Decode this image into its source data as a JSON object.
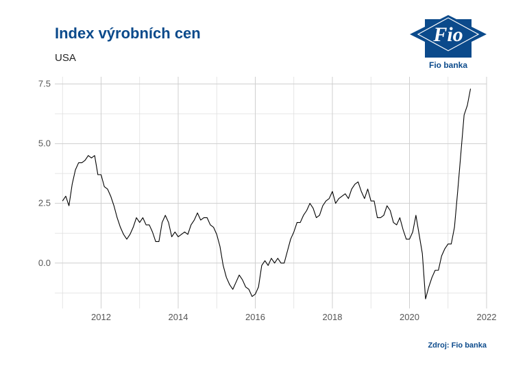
{
  "header": {
    "title": "Index výrobních cen",
    "subtitle": "USA"
  },
  "logo": {
    "mark_text": "Fio",
    "caption": "Fio banka",
    "color": "#0b4a8b"
  },
  "footer": {
    "source": "Zdroj: Fio banka"
  },
  "chart_data": {
    "type": "line",
    "title": "Index výrobních cen",
    "subtitle": "USA",
    "xlabel": "",
    "ylabel": "",
    "xlim": [
      2010.8,
      2022.0
    ],
    "ylim": [
      -1.9,
      7.8
    ],
    "x_ticks": [
      2012,
      2014,
      2016,
      2018,
      2020,
      2022
    ],
    "y_ticks": [
      0.0,
      2.5,
      5.0,
      7.5
    ],
    "y_tick_labels": [
      "0.0",
      "2.5",
      "5.0",
      "7.5"
    ],
    "grid": true,
    "line_color": "#000000",
    "series": [
      {
        "values_start": "2011-01",
        "frequency": "monthly",
        "values": [
          2.6,
          2.8,
          2.4,
          3.3,
          3.9,
          4.2,
          4.2,
          4.3,
          4.5,
          4.4,
          4.5,
          3.7,
          3.7,
          3.2,
          3.1,
          2.8,
          2.4,
          1.9,
          1.5,
          1.2,
          1.0,
          1.2,
          1.5,
          1.9,
          1.7,
          1.9,
          1.6,
          1.6,
          1.3,
          0.9,
          0.9,
          1.7,
          2.0,
          1.7,
          1.1,
          1.3,
          1.1,
          1.2,
          1.3,
          1.2,
          1.6,
          1.8,
          2.1,
          1.8,
          1.9,
          1.9,
          1.6,
          1.5,
          1.2,
          0.7,
          -0.1,
          -0.6,
          -0.9,
          -1.1,
          -0.8,
          -0.5,
          -0.7,
          -1.0,
          -1.1,
          -1.4,
          -1.3,
          -1.0,
          -0.1,
          0.1,
          -0.1,
          0.2,
          0.0,
          0.2,
          0.0,
          0.0,
          0.5,
          1.0,
          1.3,
          1.7,
          1.7,
          2.0,
          2.2,
          2.5,
          2.3,
          1.9,
          2.0,
          2.4,
          2.6,
          2.7,
          3.0,
          2.5,
          2.7,
          2.8,
          2.9,
          2.7,
          3.1,
          3.3,
          3.4,
          3.0,
          2.7,
          3.1,
          2.6,
          2.6,
          1.9,
          1.9,
          2.0,
          2.4,
          2.2,
          1.7,
          1.6,
          1.9,
          1.4,
          1.0,
          1.0,
          1.3,
          2.0,
          1.2,
          0.4,
          -1.5,
          -1.0,
          -0.6,
          -0.3,
          -0.3,
          0.3,
          0.6,
          0.8,
          0.8,
          1.5,
          3.0,
          4.6,
          6.2,
          6.6,
          7.3
        ]
      }
    ]
  }
}
